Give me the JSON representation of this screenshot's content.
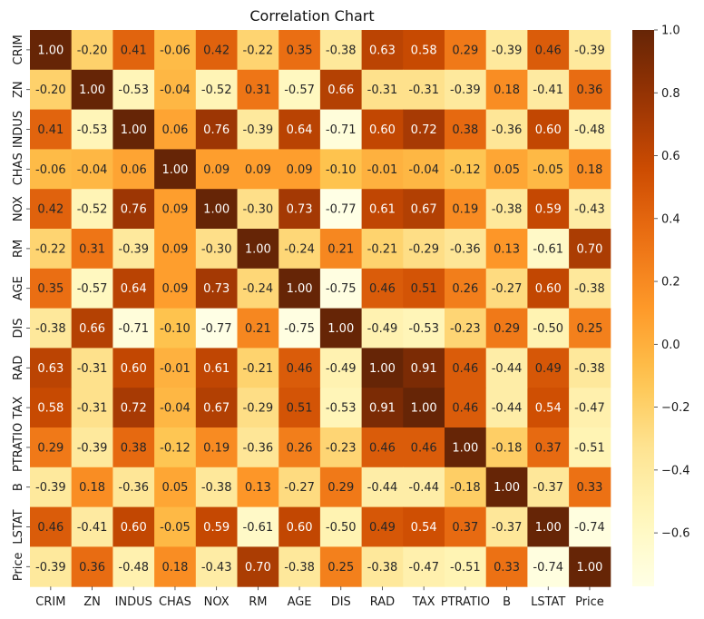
{
  "chart_data": {
    "type": "heatmap",
    "title": "Correlation Chart",
    "xlabel": "",
    "ylabel": "",
    "labels": [
      "CRIM",
      "ZN",
      "INDUS",
      "CHAS",
      "NOX",
      "RM",
      "AGE",
      "DIS",
      "RAD",
      "TAX",
      "PTRATIO",
      "B",
      "LSTAT",
      "Price"
    ],
    "matrix": [
      [
        1.0,
        -0.2,
        0.41,
        -0.06,
        0.42,
        -0.22,
        0.35,
        -0.38,
        0.63,
        0.58,
        0.29,
        -0.39,
        0.46,
        -0.39
      ],
      [
        -0.2,
        1.0,
        -0.53,
        -0.04,
        -0.52,
        0.31,
        -0.57,
        0.66,
        -0.31,
        -0.31,
        -0.39,
        0.18,
        -0.41,
        0.36
      ],
      [
        0.41,
        -0.53,
        1.0,
        0.06,
        0.76,
        -0.39,
        0.64,
        -0.71,
        0.6,
        0.72,
        0.38,
        -0.36,
        0.6,
        -0.48
      ],
      [
        -0.06,
        -0.04,
        0.06,
        1.0,
        0.09,
        0.09,
        0.09,
        -0.1,
        -0.01,
        -0.04,
        -0.12,
        0.05,
        -0.05,
        0.18
      ],
      [
        0.42,
        -0.52,
        0.76,
        0.09,
        1.0,
        -0.3,
        0.73,
        -0.77,
        0.61,
        0.67,
        0.19,
        -0.38,
        0.59,
        -0.43
      ],
      [
        -0.22,
        0.31,
        -0.39,
        0.09,
        -0.3,
        1.0,
        -0.24,
        0.21,
        -0.21,
        -0.29,
        -0.36,
        0.13,
        -0.61,
        0.7
      ],
      [
        0.35,
        -0.57,
        0.64,
        0.09,
        0.73,
        -0.24,
        1.0,
        -0.75,
        0.46,
        0.51,
        0.26,
        -0.27,
        0.6,
        -0.38
      ],
      [
        -0.38,
        0.66,
        -0.71,
        -0.1,
        -0.77,
        0.21,
        -0.75,
        1.0,
        -0.49,
        -0.53,
        -0.23,
        0.29,
        -0.5,
        0.25
      ],
      [
        0.63,
        -0.31,
        0.6,
        -0.01,
        0.61,
        -0.21,
        0.46,
        -0.49,
        1.0,
        0.91,
        0.46,
        -0.44,
        0.49,
        -0.38
      ],
      [
        0.58,
        -0.31,
        0.72,
        -0.04,
        0.67,
        -0.29,
        0.51,
        -0.53,
        0.91,
        1.0,
        0.46,
        -0.44,
        0.54,
        -0.47
      ],
      [
        0.29,
        -0.39,
        0.38,
        -0.12,
        0.19,
        -0.36,
        0.26,
        -0.23,
        0.46,
        0.46,
        1.0,
        -0.18,
        0.37,
        -0.51
      ],
      [
        -0.39,
        0.18,
        -0.36,
        0.05,
        -0.38,
        0.13,
        -0.27,
        0.29,
        -0.44,
        -0.44,
        -0.18,
        1.0,
        -0.37,
        0.33
      ],
      [
        0.46,
        -0.41,
        0.6,
        -0.05,
        0.59,
        -0.61,
        0.6,
        -0.5,
        0.49,
        0.54,
        0.37,
        -0.37,
        1.0,
        -0.74
      ],
      [
        -0.39,
        0.36,
        -0.48,
        0.18,
        -0.43,
        0.7,
        -0.38,
        0.25,
        -0.38,
        -0.47,
        -0.51,
        0.33,
        -0.74,
        1.0
      ]
    ],
    "value_format": "2 decimals",
    "colormap": "YlOrBr",
    "vmin": -0.77,
    "vmax": 1.0,
    "colorbar_ticks": [
      1.0,
      0.8,
      0.6,
      0.4,
      0.2,
      0.0,
      -0.2,
      -0.4,
      -0.6
    ],
    "colorbar_tick_labels": [
      "1.0",
      "0.8",
      "0.6",
      "0.4",
      "0.2",
      "0.0",
      "−0.2",
      "−0.4",
      "−0.6"
    ],
    "grid": false,
    "legend": "colorbar right"
  }
}
